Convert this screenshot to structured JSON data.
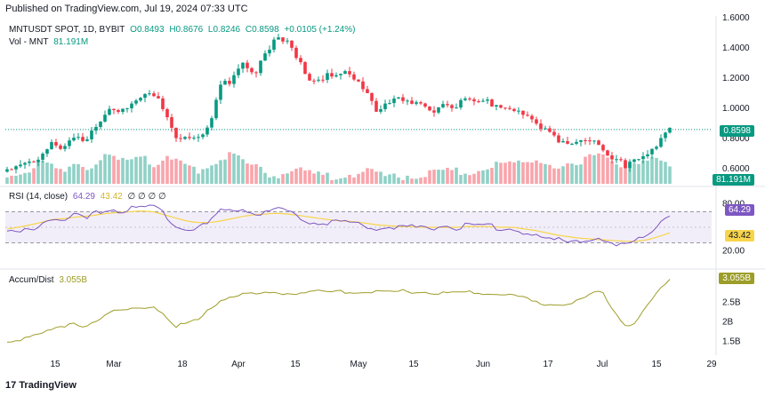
{
  "header": "Published on TradingView.com, Jul 19, 2024 07:33 UTC",
  "logo_text": "TradingView",
  "colors": {
    "up": "#089981",
    "down": "#f23645",
    "rsi": "#7e57c2",
    "rsi_ma": "#f7d44b",
    "ad": "#9d9d29",
    "band": "#ede7f6"
  },
  "price_legend": {
    "symbol": "MNTUSDT SPOT, 1D, BYBIT",
    "o": "O0.8493",
    "h": "H0.8676",
    "l": "L0.8246",
    "c": "C0.8598",
    "chg": "+0.0105 (+1.24%)"
  },
  "vol_legend": {
    "label": "Vol - MNT",
    "value": "81.191M"
  },
  "rsi_legend": {
    "label": "RSI (14, close)",
    "v1": "64.29",
    "v2": "43.42",
    "na": "∅ ∅ ∅ ∅"
  },
  "ad_legend": {
    "label": "Accum/Dist",
    "value": "3.055B"
  },
  "badges": {
    "price": "0.8598",
    "vol": "81.191M",
    "rsi": "64.29",
    "rsi_ma": "43.42",
    "ad": "3.055B"
  },
  "x_ticks": [
    "15",
    "Mar",
    "18",
    "Apr",
    "15",
    "May",
    "15",
    "Jun",
    "17",
    "Jul",
    "15",
    "29"
  ],
  "price_axis": [
    "1.6000",
    "1.4000",
    "1.2000",
    "1.0000",
    "0.8000",
    "0.6000"
  ],
  "rsi_axis": [
    "80.00",
    "20.00"
  ],
  "ad_axis": [
    "2.5B",
    "2B",
    "1.5B"
  ],
  "chart_data": {
    "type": "candlestick",
    "last_close": 0.8598,
    "price_ylim": [
      0.5,
      1.6
    ],
    "close_path": [
      0.58,
      0.6,
      0.63,
      0.7,
      0.78,
      0.74,
      0.8,
      0.77,
      0.9,
      1.02,
      1.0,
      1.02,
      1.06,
      1.08,
      1.0,
      0.83,
      0.82,
      0.8,
      0.86,
      1.14,
      1.2,
      1.33,
      1.24,
      1.34,
      1.46,
      1.42,
      1.33,
      1.19,
      1.22,
      1.2,
      1.24,
      1.17,
      1.12,
      0.98,
      1.06,
      1.04,
      1.02,
      1.0,
      1.0,
      1.04,
      1.02,
      1.04,
      1.03,
      1.04,
      1.01,
      1.01,
      0.97,
      0.88,
      0.84,
      0.8,
      0.79,
      0.79,
      0.8,
      0.72,
      0.64,
      0.63,
      0.68,
      0.71,
      0.77,
      0.86
    ],
    "volume_path": [
      0.25,
      0.3,
      0.35,
      0.55,
      0.45,
      0.35,
      0.6,
      0.5,
      0.55,
      0.8,
      0.6,
      0.7,
      0.9,
      0.5,
      0.8,
      0.6,
      0.5,
      0.4,
      0.55,
      0.7,
      0.9,
      0.6,
      0.5,
      0.3,
      0.25,
      0.4,
      0.35,
      0.3,
      0.2,
      0.2,
      0.25,
      0.3,
      0.35,
      0.25,
      0.2,
      0.2,
      0.25,
      0.2,
      0.3,
      0.35,
      0.4,
      0.3,
      0.45,
      0.55,
      0.5,
      0.55,
      0.6,
      0.7,
      0.6,
      0.5,
      0.45,
      0.5,
      0.8,
      0.9,
      0.6,
      0.55,
      0.5,
      0.6,
      0.7,
      0.6
    ],
    "rsi_path": [
      42,
      43,
      47,
      55,
      62,
      58,
      65,
      60,
      68,
      74,
      72,
      73,
      74,
      76,
      68,
      52,
      50,
      48,
      55,
      70,
      72,
      75,
      68,
      70,
      73,
      70,
      64,
      55,
      57,
      56,
      58,
      54,
      52,
      48,
      52,
      50,
      50,
      49,
      50,
      53,
      50,
      52,
      51,
      52,
      49,
      49,
      44,
      38,
      36,
      33,
      34,
      34,
      35,
      32,
      25,
      26,
      36,
      42,
      52,
      64
    ],
    "rsi_ma_path": [
      48,
      50,
      53,
      56,
      60,
      61,
      63,
      64,
      66,
      68,
      69,
      70,
      71,
      70,
      66,
      62,
      58,
      56,
      56,
      58,
      61,
      64,
      66,
      67,
      68,
      67,
      65,
      63,
      61,
      59,
      58,
      57,
      55,
      53,
      52,
      51,
      51,
      50,
      50,
      50,
      50,
      51,
      51,
      51,
      50,
      50,
      48,
      46,
      43,
      40,
      38,
      36,
      35,
      34,
      33,
      32,
      32,
      34,
      38,
      43
    ],
    "ad_path": [
      1.45,
      1.55,
      1.65,
      1.72,
      1.8,
      1.85,
      1.95,
      1.9,
      2.05,
      2.25,
      2.3,
      2.3,
      2.35,
      2.42,
      2.2,
      1.9,
      1.95,
      2.05,
      2.3,
      2.55,
      2.65,
      2.72,
      2.7,
      2.72,
      2.75,
      2.72,
      2.74,
      2.78,
      2.76,
      2.76,
      2.78,
      2.76,
      2.77,
      2.76,
      2.76,
      2.78,
      2.76,
      2.76,
      2.75,
      2.74,
      2.73,
      2.75,
      2.75,
      2.7,
      2.72,
      2.66,
      2.62,
      2.48,
      2.46,
      2.45,
      2.45,
      2.55,
      2.7,
      2.75,
      2.3,
      1.9,
      2.0,
      2.4,
      2.8,
      3.055
    ],
    "rsi_ylim": [
      0,
      100
    ],
    "ad_ylim": [
      1.2,
      3.3
    ]
  }
}
